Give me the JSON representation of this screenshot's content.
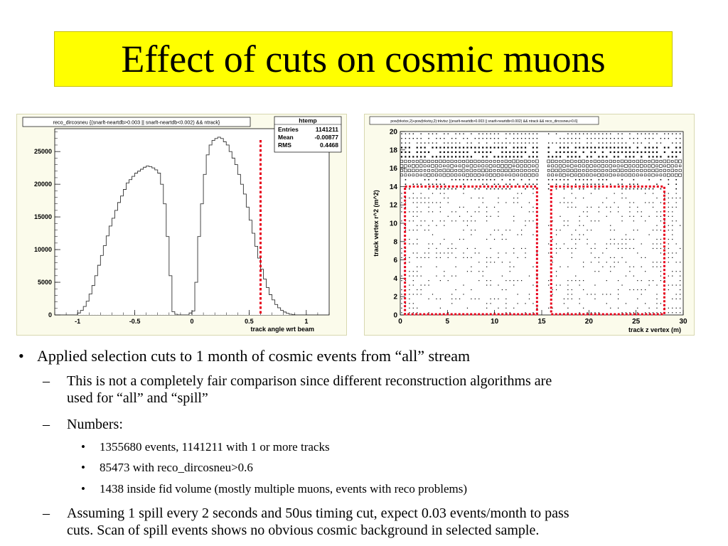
{
  "slide": {
    "title": "Effect of cuts on cosmic muons"
  },
  "colors": {
    "title_bg": "#ffff00",
    "panel_bg": "#fbfbeb",
    "cut_line": "#e8001a"
  },
  "hist_panel": {
    "title": "reco_dircosneu {(snarlt-neartdb>0.003 || snarlt-neartdb<0.002) && ntrack}",
    "stats": {
      "name": "htemp",
      "rows": [
        {
          "label": "Entries",
          "value": "1141211"
        },
        {
          "label": "Mean",
          "value": "-0.00877"
        },
        {
          "label": "RMS",
          "value": "0.4468"
        }
      ]
    },
    "xlabel": "track angle wrt beam"
  },
  "scatter_panel": {
    "title": "pow(trkvtxx,2)+pow(trkvtxy,2):trkvtxz {(snarlt-neartdb>0.003 || snarlt-neartdb<0.002) && ntrack && reco_dircosneu>0.6}",
    "xlabel": "track z vertex (m)",
    "ylabel": "track vertex r^2 (m^2)"
  },
  "chart_data": [
    {
      "type": "bar",
      "title": "reco_dircosneu {(snarlt-neartdb>0.003 || snarlt-neartdb<0.002) && ntrack}",
      "xlabel": "track angle wrt beam",
      "ylabel": "",
      "xlim": [
        -1.2,
        1.2
      ],
      "ylim": [
        0,
        28500
      ],
      "xticks": [
        "-1",
        "-0.5",
        "0",
        "0.5",
        "1"
      ],
      "yticks": [
        "0",
        "5000",
        "10000",
        "15000",
        "20000",
        "25000"
      ],
      "bin_width": 0.025,
      "x": [
        -1.0,
        -0.975,
        -0.95,
        -0.925,
        -0.9,
        -0.875,
        -0.85,
        -0.825,
        -0.8,
        -0.775,
        -0.75,
        -0.725,
        -0.7,
        -0.675,
        -0.65,
        -0.625,
        -0.6,
        -0.575,
        -0.55,
        -0.525,
        -0.5,
        -0.475,
        -0.45,
        -0.425,
        -0.4,
        -0.375,
        -0.35,
        -0.325,
        -0.3,
        -0.275,
        -0.25,
        -0.225,
        -0.2,
        -0.175,
        -0.15,
        -0.125,
        -0.1,
        -0.075,
        -0.05,
        -0.025,
        0.0,
        0.025,
        0.05,
        0.075,
        0.1,
        0.125,
        0.15,
        0.175,
        0.2,
        0.225,
        0.25,
        0.275,
        0.3,
        0.325,
        0.35,
        0.375,
        0.4,
        0.425,
        0.45,
        0.475,
        0.5,
        0.525,
        0.55,
        0.575,
        0.6,
        0.625,
        0.65,
        0.675,
        0.7,
        0.725,
        0.75,
        0.775,
        0.8,
        0.825,
        0.85,
        0.875,
        0.9,
        0.925,
        0.95,
        0.975
      ],
      "values": [
        300,
        700,
        1300,
        2100,
        3200,
        4500,
        6000,
        7600,
        9100,
        10600,
        12100,
        13600,
        14800,
        16000,
        17200,
        18200,
        19200,
        20200,
        20700,
        21200,
        21700,
        22000,
        22300,
        22600,
        22800,
        22700,
        22500,
        22200,
        21700,
        20000,
        17000,
        12000,
        6000,
        500,
        100,
        0,
        0,
        0,
        0,
        300,
        600,
        5000,
        12000,
        17000,
        21500,
        24500,
        26000,
        26700,
        27000,
        27200,
        27000,
        26500,
        26000,
        25000,
        24000,
        23000,
        21500,
        20000,
        18500,
        16500,
        14500,
        12500,
        10500,
        8700,
        7000,
        5500,
        4200,
        3100,
        2300,
        1600,
        1100,
        700,
        450,
        250,
        120,
        50,
        10,
        0,
        0,
        0
      ],
      "cut_x": 0.6,
      "stats": {
        "Entries": "1141211",
        "Mean": "-0.00877",
        "RMS": "0.4468"
      }
    },
    {
      "type": "scatter",
      "title": "pow(trkvtxx,2)+pow(trkvtxy,2):trkvtxz {(snarlt-neartdb>0.003 || snarlt-neartdb<0.002) && ntrack && reco_dircosneu>0.6}",
      "xlabel": "track z vertex (m)",
      "ylabel": "track vertex r^2 (m^2)",
      "xlim": [
        0,
        30
      ],
      "ylim": [
        0,
        20
      ],
      "xticks": [
        "0",
        "5",
        "10",
        "15",
        "20",
        "25",
        "30"
      ],
      "yticks": [
        "0",
        "2",
        "4",
        "6",
        "8",
        "10",
        "12",
        "14",
        "16",
        "18",
        "20"
      ],
      "fiducial_boxes": [
        {
          "x": [
            0.5,
            14.5
          ],
          "y": [
            0,
            14
          ]
        },
        {
          "x": [
            16,
            28
          ],
          "y": [
            0,
            14
          ]
        }
      ]
    }
  ],
  "bullets": {
    "b1": "Applied selection cuts to 1 month of cosmic events from “all” stream",
    "s1a": "This is not a completely fair comparison since different reconstruction algorithms are",
    "s1b": "used for “all” and “spill”",
    "s2": "Numbers:",
    "n1": "1355680 events, 1141211 with 1 or more tracks",
    "n2": "85473 with reco_dircosneu>0.6",
    "n3": "1438 inside fid volume (mostly multiple muons, events with reco problems)",
    "s3a": "Assuming 1 spill every 2 seconds and 50us timing cut, expect 0.03 events/month to pass",
    "s3b": "cuts. Scan of spill events shows no obvious cosmic background in selected sample.",
    "bullet_char": "•",
    "dash_char": "–",
    "small_bullet_char": "•"
  }
}
